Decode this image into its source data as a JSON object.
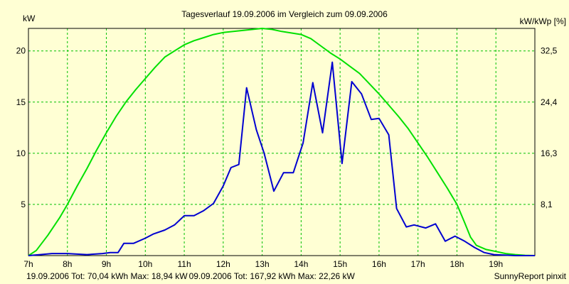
{
  "chart_data": {
    "type": "line",
    "title": "Tagesverlauf 19.09.2006 im Vergleich zum 09.09.2006",
    "ylabel_left": "kW",
    "ylabel_right": "kW/kWp [%]",
    "footer_credit": "SunnyReport pinxit",
    "x_range": [
      7,
      20
    ],
    "y_range": [
      0,
      22.2
    ],
    "x_ticks": [
      {
        "v": 7,
        "label": "7h"
      },
      {
        "v": 8,
        "label": "8h"
      },
      {
        "v": 9,
        "label": "9h"
      },
      {
        "v": 10,
        "label": "10h"
      },
      {
        "v": 11,
        "label": "11h"
      },
      {
        "v": 12,
        "label": "12h"
      },
      {
        "v": 13,
        "label": "13h"
      },
      {
        "v": 14,
        "label": "14h"
      },
      {
        "v": 15,
        "label": "15h"
      },
      {
        "v": 16,
        "label": "16h"
      },
      {
        "v": 17,
        "label": "17h"
      },
      {
        "v": 18,
        "label": "18h"
      },
      {
        "v": 19,
        "label": "19h"
      }
    ],
    "y_ticks_left": [
      {
        "v": 5,
        "label": "5"
      },
      {
        "v": 10,
        "label": "10"
      },
      {
        "v": 15,
        "label": "15"
      },
      {
        "v": 20,
        "label": "20"
      }
    ],
    "y_ticks_right": [
      {
        "v": 5,
        "label": "8,1"
      },
      {
        "v": 10,
        "label": "16,3"
      },
      {
        "v": 15,
        "label": "24,4"
      },
      {
        "v": 20,
        "label": "32,5"
      }
    ],
    "grid": true,
    "series": [
      {
        "name": "09.09.2006 Tot: 167,92 kWh Max: 22,26 kW",
        "color": "#00e000",
        "points": [
          [
            7.0,
            0.0
          ],
          [
            7.2,
            0.5
          ],
          [
            7.5,
            2.0
          ],
          [
            7.8,
            3.7
          ],
          [
            8.0,
            5.0
          ],
          [
            8.25,
            6.8
          ],
          [
            8.5,
            8.5
          ],
          [
            8.75,
            10.3
          ],
          [
            9.0,
            12.0
          ],
          [
            9.25,
            13.6
          ],
          [
            9.5,
            15.0
          ],
          [
            9.75,
            16.2
          ],
          [
            10.0,
            17.3
          ],
          [
            10.25,
            18.4
          ],
          [
            10.5,
            19.4
          ],
          [
            10.75,
            20.0
          ],
          [
            11.0,
            20.6
          ],
          [
            11.25,
            21.0
          ],
          [
            11.5,
            21.3
          ],
          [
            11.75,
            21.6
          ],
          [
            12.0,
            21.8
          ],
          [
            12.5,
            22.0
          ],
          [
            13.0,
            22.2
          ],
          [
            13.25,
            22.1
          ],
          [
            13.5,
            21.9
          ],
          [
            14.0,
            21.6
          ],
          [
            14.25,
            21.2
          ],
          [
            14.5,
            20.5
          ],
          [
            14.75,
            19.8
          ],
          [
            15.0,
            19.2
          ],
          [
            15.25,
            18.5
          ],
          [
            15.5,
            17.8
          ],
          [
            15.75,
            16.8
          ],
          [
            16.0,
            15.8
          ],
          [
            16.25,
            14.7
          ],
          [
            16.5,
            13.6
          ],
          [
            16.75,
            12.4
          ],
          [
            17.0,
            11.0
          ],
          [
            17.25,
            9.6
          ],
          [
            17.5,
            8.1
          ],
          [
            17.75,
            6.6
          ],
          [
            18.0,
            5.0
          ],
          [
            18.2,
            3.2
          ],
          [
            18.35,
            1.8
          ],
          [
            18.5,
            1.0
          ],
          [
            18.75,
            0.6
          ],
          [
            19.0,
            0.4
          ],
          [
            19.25,
            0.2
          ],
          [
            19.5,
            0.1
          ],
          [
            19.75,
            0.03
          ],
          [
            20.0,
            0.0
          ]
        ]
      },
      {
        "name": "19.09.2006 Tot: 70,04 kWh Max: 18,94 kW",
        "color": "#0000d0",
        "points": [
          [
            7.0,
            0.0
          ],
          [
            7.3,
            0.1
          ],
          [
            7.6,
            0.2
          ],
          [
            8.0,
            0.2
          ],
          [
            8.5,
            0.1
          ],
          [
            8.9,
            0.2
          ],
          [
            9.1,
            0.3
          ],
          [
            9.3,
            0.3
          ],
          [
            9.45,
            1.2
          ],
          [
            9.7,
            1.2
          ],
          [
            10.0,
            1.7
          ],
          [
            10.2,
            2.1
          ],
          [
            10.5,
            2.5
          ],
          [
            10.75,
            3.0
          ],
          [
            11.0,
            3.9
          ],
          [
            11.25,
            3.9
          ],
          [
            11.5,
            4.4
          ],
          [
            11.75,
            5.1
          ],
          [
            12.0,
            6.8
          ],
          [
            12.2,
            8.6
          ],
          [
            12.4,
            8.9
          ],
          [
            12.6,
            16.4
          ],
          [
            12.85,
            12.3
          ],
          [
            13.05,
            10.0
          ],
          [
            13.3,
            6.3
          ],
          [
            13.55,
            8.1
          ],
          [
            13.8,
            8.1
          ],
          [
            14.05,
            11.0
          ],
          [
            14.3,
            16.9
          ],
          [
            14.55,
            12.0
          ],
          [
            14.8,
            18.9
          ],
          [
            15.05,
            9.0
          ],
          [
            15.3,
            17.0
          ],
          [
            15.55,
            15.8
          ],
          [
            15.8,
            13.3
          ],
          [
            16.0,
            13.4
          ],
          [
            16.25,
            11.8
          ],
          [
            16.45,
            4.6
          ],
          [
            16.7,
            2.8
          ],
          [
            16.9,
            3.0
          ],
          [
            17.2,
            2.7
          ],
          [
            17.45,
            3.1
          ],
          [
            17.7,
            1.4
          ],
          [
            17.95,
            1.9
          ],
          [
            18.2,
            1.4
          ],
          [
            18.45,
            0.8
          ],
          [
            18.7,
            0.3
          ],
          [
            18.95,
            0.1
          ],
          [
            19.2,
            0.05
          ],
          [
            19.5,
            0.0
          ],
          [
            20.0,
            0.0
          ]
        ]
      }
    ]
  }
}
